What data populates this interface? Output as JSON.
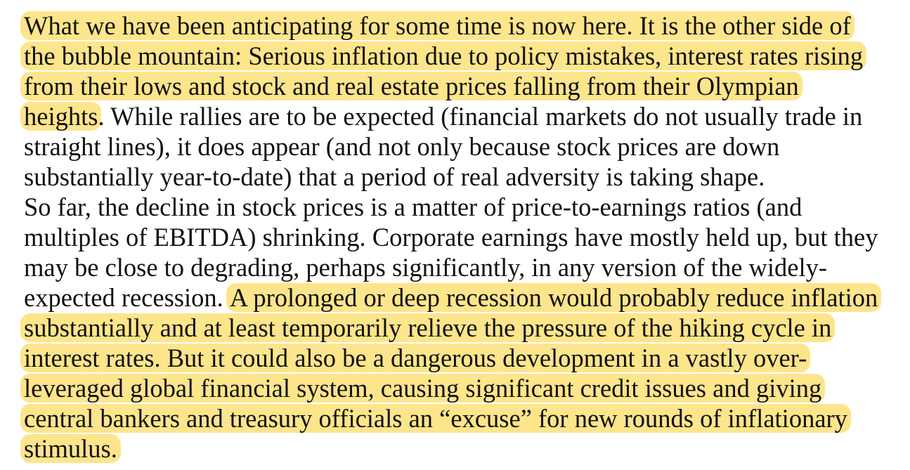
{
  "highlight_color": "#fde58c",
  "paragraphs": [
    {
      "lines": [
        {
          "highlighted": "What we have been anticipating for some time is now here. It is the other side of",
          "plain": ""
        },
        {
          "highlighted": "the bubble mountain: Serious inflation due to policy mistakes, interest rates rising",
          "plain": ""
        },
        {
          "highlighted": "from their lows and stock and real estate prices falling from their Olympian",
          "plain": ""
        },
        {
          "highlighted": "heights",
          "plain": ". While rallies are to be expected (financial markets do not usually trade in"
        },
        {
          "plain": "straight lines), it does appear (and not only because stock prices are down"
        },
        {
          "plain": "substantially year-to-date) that a period of real adversity is taking shape."
        }
      ]
    },
    {
      "lines": [
        {
          "plain": "So far, the decline in stock prices is a matter of price-to-earnings ratios (and"
        },
        {
          "plain": "multiples of EBITDA) shrinking. Corporate earnings have mostly held up, but they"
        },
        {
          "plain": "may be close to degrading, perhaps significantly, in any version of the widely-"
        },
        {
          "plain": "expected recession. ",
          "highlighted": "A prolonged or deep recession would probably reduce inflation"
        },
        {
          "highlighted": "substantially and at least temporarily relieve the pressure of the hiking cycle in"
        },
        {
          "highlighted": "interest rates. But it could also be a dangerous development in a vastly over-"
        },
        {
          "highlighted": "leveraged global financial system, causing significant credit issues and giving"
        },
        {
          "highlighted": "central bankers and treasury officials an “excuse” for new rounds of inflationary"
        },
        {
          "highlighted": "stimulus."
        }
      ]
    }
  ]
}
